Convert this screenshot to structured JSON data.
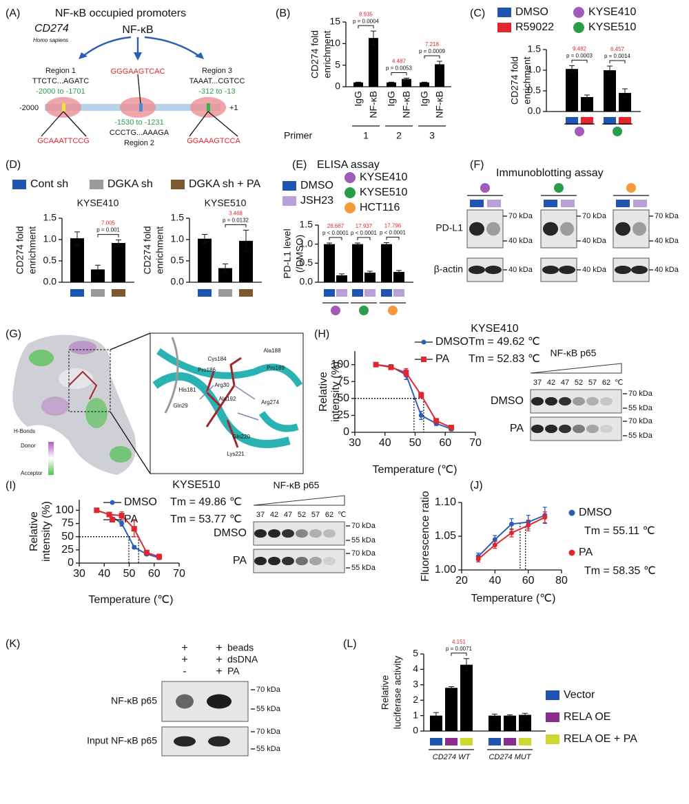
{
  "panel_labels": [
    "(A)",
    "(B)",
    "(C)",
    "(D)",
    "(E)",
    "(F)",
    "(G)",
    "(H)",
    "(I)",
    "(J)",
    "(K)",
    "(L)"
  ],
  "diagram_a": {
    "title": "NF-κB occupied promoters",
    "factor": "NF-κB",
    "gene": "CD274",
    "species": "Homo sapiens",
    "region1": {
      "name": "Region 1",
      "seq": "TTCTC...AGATC",
      "range": "-2000 to -1701",
      "site": "GCAAATTCCG"
    },
    "region2": {
      "name": "Region 2",
      "seq": "CCCTG...AAAGA",
      "range": "-1530 to -1231",
      "site": "GGGAAGTCAC"
    },
    "region3": {
      "name": "Region 3",
      "seq": "TAAAT...CGTCC",
      "range": "-312 to -13",
      "site": "GGAAAGTCCA"
    },
    "start": "-2000",
    "end": "+1"
  },
  "structure_g": {
    "legend_title": "H-Bonds",
    "legend_high": "Donor",
    "legend_low": "Acceptor",
    "residues": [
      "Ala188",
      "Pro189",
      "Cys184",
      "Pro186",
      "Arg30",
      "His181",
      "Gln29",
      "Ala192",
      "Arg274",
      "Gln220",
      "Lys221"
    ]
  },
  "blots": {
    "f": {
      "title": "Immunoblotting assay",
      "rows": [
        "PD-L1",
        "β-actin"
      ],
      "markers": [
        "70 kDa",
        "40 kDa"
      ]
    },
    "h": {
      "title": "NF-κB p65",
      "lanes": [
        37,
        42,
        47,
        52,
        57,
        62
      ],
      "unit": "℃",
      "rows": [
        "DMSO",
        "PA"
      ],
      "markers": [
        "70 kDa",
        "55 kDa"
      ]
    },
    "i": {
      "title": "NF-κB p65",
      "lanes": [
        37,
        42,
        47,
        52,
        57,
        62
      ],
      "unit": "℃",
      "rows": [
        "DMSO",
        "PA"
      ],
      "markers": [
        "70 kDa",
        "55 kDa"
      ]
    },
    "k": {
      "conditions": [
        {
          "name": "beads",
          "lanes": [
            "+",
            "+"
          ]
        },
        {
          "name": "dsDNA",
          "lanes": [
            "+",
            "+"
          ]
        },
        {
          "name": "PA",
          "lanes": [
            "-",
            "+"
          ]
        }
      ],
      "rows": [
        "NF-κB p65",
        "Input NF-κB p65"
      ],
      "markers": [
        "70 kDa",
        "55 kDa"
      ]
    }
  },
  "chart_data": [
    {
      "type": "bar",
      "ylabel": [
        "CD274 fold",
        "enrichment"
      ],
      "categories": [
        "1",
        "2",
        "3"
      ],
      "xlabel": "Primer",
      "bar_color": "#000000",
      "series": [
        {
          "name": "IgG",
          "values": [
            1,
            1,
            1
          ],
          "errors": [
            0.05,
            0.05,
            0.05
          ]
        },
        {
          "name": "NF-κB",
          "values": [
            11.3,
            1.8,
            5.2
          ],
          "errors": [
            1.6,
            0.2,
            0.7
          ]
        }
      ],
      "ylim": [
        0,
        15
      ],
      "yticks": [
        0,
        5,
        10,
        15
      ],
      "comparisons": [
        {
          "fold": 8.935,
          "p": "p = 0.0004"
        },
        {
          "fold": 4.487,
          "p": "p = 0.0053"
        },
        {
          "fold": 7.218,
          "p": "p = 0.0009"
        }
      ]
    },
    {
      "type": "bar",
      "ylabel": [
        "CD274 fold",
        "enrichment"
      ],
      "bar_color": "#000000",
      "groups": [
        {
          "name": "KYSE410",
          "color": "#a05cb8"
        },
        {
          "name": "KYSE510",
          "color": "#2a9d4a"
        }
      ],
      "series": [
        {
          "name": "DMSO",
          "color": "#1f55b0",
          "values": [
            1.03,
            1.0
          ],
          "errors": [
            0.08,
            0.1
          ]
        },
        {
          "name": "R59022",
          "color": "#e3262e",
          "values": [
            0.35,
            0.45
          ],
          "errors": [
            0.05,
            0.1
          ]
        }
      ],
      "ylim": [
        0,
        1.5
      ],
      "yticks": [
        {
          "value": 0,
          "label": "0.0"
        },
        0.5,
        {
          "value": 1,
          "label": "1.0"
        },
        1.5
      ],
      "comparisons": [
        {
          "fold": 9.482,
          "p": "p = 0.0003"
        },
        {
          "fold": 6.457,
          "p": "p = 0.0014"
        }
      ]
    },
    {
      "type": "bar",
      "ylabel": [
        "CD274 fold",
        "enrichment"
      ],
      "bar_color": "#000000",
      "groups": [
        {
          "name": "KYSE410"
        },
        {
          "name": "KYSE510"
        }
      ],
      "series": [
        {
          "name": "Cont sh",
          "color": "#1f55b0",
          "values": [
            1.03,
            1.02
          ],
          "errors": [
            0.15,
            0.1
          ]
        },
        {
          "name": "DGKA sh",
          "color": "#9a9a9a",
          "values": [
            0.3,
            0.33
          ],
          "errors": [
            0.1,
            0.1
          ]
        },
        {
          "name": "DGKA sh + PA",
          "color": "#7a5a2e",
          "values": [
            0.92,
            0.97
          ],
          "errors": [
            0.07,
            0.25
          ]
        }
      ],
      "ylim": [
        0,
        1.5
      ],
      "yticks": [
        {
          "value": 0,
          "label": "0.0"
        },
        0.5,
        {
          "value": 1,
          "label": "1.0"
        },
        1.5
      ],
      "comparisons": [
        {
          "fold": 7.005,
          "p": "p = 0.001"
        },
        {
          "fold": 3.468,
          "p": "p = 0.0132"
        }
      ]
    },
    {
      "type": "bar",
      "title": "ELISA assay",
      "ylabel": [
        "PD-L1 level",
        "(/DMSO)"
      ],
      "bar_color": "#000000",
      "groups": [
        {
          "name": "KYSE410",
          "color": "#a05cb8"
        },
        {
          "name": "KYSE510",
          "color": "#2a9d4a"
        },
        {
          "name": "HCT116",
          "color": "#f39a3c"
        }
      ],
      "series": [
        {
          "name": "DMSO",
          "color": "#1f55b0",
          "values": [
            1,
            1,
            1
          ],
          "errors": [
            0.03,
            0.03,
            0.04
          ]
        },
        {
          "name": "JSH23",
          "color": "#b9a0d8",
          "values": [
            0.18,
            0.25,
            0.27
          ],
          "errors": [
            0.04,
            0.04,
            0.04
          ]
        }
      ],
      "ylim": [
        0,
        1.5
      ],
      "yticks": [
        {
          "value": 0,
          "label": "0.0"
        },
        0.5,
        {
          "value": 1,
          "label": "1.0"
        },
        1.5
      ],
      "comparisons": [
        {
          "fold": 28.667,
          "p": "p < 0.0001"
        },
        {
          "fold": 17.937,
          "p": "p < 0.0001"
        },
        {
          "fold": 17.796,
          "p": "p < 0.0001"
        }
      ]
    },
    {
      "type": "line",
      "title": "KYSE410",
      "xlabel": "Temperature (℃)",
      "ylabel": [
        "Relative",
        "intensity (%)"
      ],
      "x": [
        37,
        42,
        47,
        52,
        57,
        62
      ],
      "xlim": [
        30,
        70
      ],
      "xticks": [
        30,
        40,
        50,
        60,
        70
      ],
      "ylim": [
        0,
        120
      ],
      "yticks": [
        0,
        25,
        50,
        75,
        100
      ],
      "tm_level": 50,
      "series": [
        {
          "name": "DMSO",
          "color": "#2b5fb5",
          "marker": "circle",
          "values": [
            100,
            97,
            85,
            25,
            13,
            5
          ],
          "errors": [
            2,
            3,
            7,
            6,
            3,
            3
          ],
          "tm": 49.62,
          "tm_label": "Tm = 49.62 ℃"
        },
        {
          "name": "PA",
          "color": "#e0262e",
          "marker": "square",
          "values": [
            100,
            96,
            88,
            55,
            17,
            7
          ],
          "errors": [
            2,
            3,
            6,
            4,
            3,
            3
          ],
          "tm": 52.83,
          "tm_label": "Tm = 52.83 ℃"
        }
      ]
    },
    {
      "type": "line",
      "title": "KYSE510",
      "xlabel": "Temperature (℃)",
      "ylabel": [
        "Relative",
        "intensity (%)"
      ],
      "x": [
        37,
        42,
        47,
        52,
        57,
        62
      ],
      "xlim": [
        30,
        70
      ],
      "xticks": [
        30,
        40,
        50,
        60,
        70
      ],
      "ylim": [
        0,
        120
      ],
      "yticks": [
        0,
        25,
        50,
        75,
        100
      ],
      "tm_level": 50,
      "series": [
        {
          "name": "DMSO",
          "color": "#2b5fb5",
          "marker": "circle",
          "values": [
            100,
            92,
            75,
            30,
            17,
            10
          ],
          "errors": [
            2,
            3,
            5,
            3,
            3,
            3
          ],
          "tm": 49.86,
          "tm_label": "Tm = 49.86 ℃"
        },
        {
          "name": "PA",
          "color": "#e0262e",
          "marker": "square",
          "values": [
            100,
            92,
            90,
            65,
            20,
            12
          ],
          "errors": [
            2,
            3,
            7,
            15,
            4,
            5
          ],
          "tm": 53.77,
          "tm_label": "Tm = 53.77 ℃"
        }
      ]
    },
    {
      "type": "line",
      "xlabel": "Temperature (℃)",
      "ylabel": [
        "Fluorescence ratio"
      ],
      "x": [
        30,
        40,
        50,
        60,
        70
      ],
      "xlim": [
        20,
        80
      ],
      "xticks": [
        20,
        40,
        60,
        80
      ],
      "ylim": [
        1.0,
        1.1
      ],
      "yticks": [
        {
          "value": 1,
          "label": "1.00"
        },
        1.05,
        {
          "value": 1.1,
          "label": "1.10"
        }
      ],
      "series": [
        {
          "name": "DMSO",
          "color": "#2b5fb5",
          "marker": "circle",
          "values": [
            1.02,
            1.045,
            1.068,
            1.071,
            1.081
          ],
          "errors": [
            0.005,
            0.006,
            0.008,
            0.01,
            0.012
          ],
          "tm": 55.11,
          "tm_label": "Tm = 55.11 ℃"
        },
        {
          "name": "PA",
          "color": "#e0262e",
          "marker": "circle",
          "values": [
            1.016,
            1.037,
            1.055,
            1.066,
            1.078
          ],
          "errors": [
            0.004,
            0.005,
            0.006,
            0.008,
            0.008
          ],
          "tm": 58.35,
          "tm_label": "Tm = 58.35 ℃"
        }
      ]
    },
    {
      "type": "bar",
      "ylabel": [
        "Relative",
        "luciferase activity"
      ],
      "bar_color": "#000000",
      "groups": [
        {
          "name": "CD274 WT"
        },
        {
          "name": "CD274 MUT"
        }
      ],
      "series": [
        {
          "name": "Vector",
          "color": "#1f55b0",
          "values": [
            1.0,
            1.0
          ],
          "errors": [
            0.2,
            0.1
          ]
        },
        {
          "name": "RELA OE",
          "color": "#8b2c8f",
          "values": [
            2.8,
            1.0
          ],
          "errors": [
            0.08,
            0.05
          ]
        },
        {
          "name": "RELA OE + PA",
          "color": "#cfd832",
          "values": [
            4.3,
            1.05
          ],
          "errors": [
            0.4,
            0.1
          ]
        }
      ],
      "ylim": [
        0,
        5
      ],
      "yticks": [
        0,
        1,
        2,
        3,
        4,
        5
      ],
      "comparisons": [
        {
          "fold": 4.151,
          "p": "p = 0.0071"
        }
      ]
    }
  ]
}
